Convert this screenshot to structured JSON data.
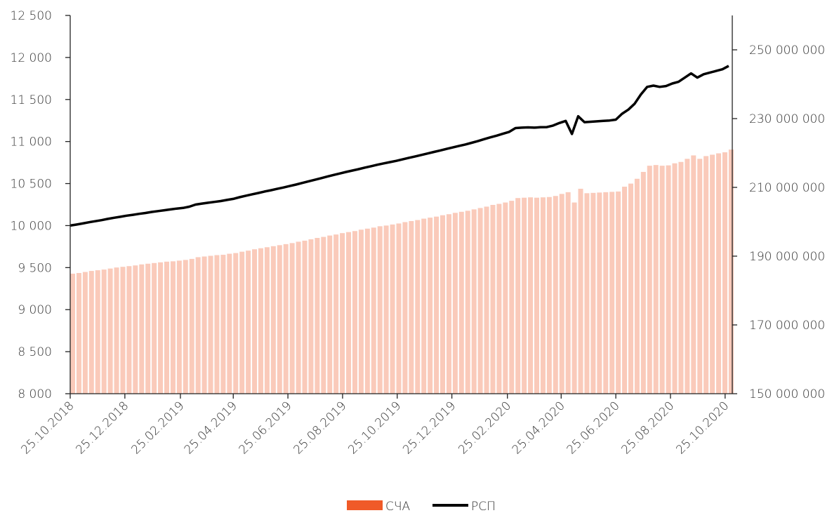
{
  "chart_data": {
    "type": "combo",
    "x": [
      "25.10.2018",
      "01.11.2018",
      "08.11.2018",
      "15.11.2018",
      "22.11.2018",
      "29.11.2018",
      "06.12.2018",
      "13.12.2018",
      "20.12.2018",
      "27.12.2018",
      "03.01.2019",
      "10.01.2019",
      "17.01.2019",
      "24.01.2019",
      "31.01.2019",
      "07.02.2019",
      "14.02.2019",
      "21.02.2019",
      "28.02.2019",
      "07.03.2019",
      "14.03.2019",
      "21.03.2019",
      "28.03.2019",
      "04.04.2019",
      "11.04.2019",
      "18.04.2019",
      "25.04.2019",
      "02.05.2019",
      "09.05.2019",
      "16.05.2019",
      "23.05.2019",
      "30.05.2019",
      "06.06.2019",
      "13.06.2019",
      "20.06.2019",
      "27.06.2019",
      "04.07.2019",
      "11.07.2019",
      "18.07.2019",
      "25.07.2019",
      "01.08.2019",
      "08.08.2019",
      "15.08.2019",
      "22.08.2019",
      "29.08.2019",
      "05.09.2019",
      "12.09.2019",
      "19.09.2019",
      "26.09.2019",
      "03.10.2019",
      "10.10.2019",
      "17.10.2019",
      "24.10.2019",
      "31.10.2019",
      "07.11.2019",
      "14.11.2019",
      "21.11.2019",
      "28.11.2019",
      "05.12.2019",
      "12.12.2019",
      "19.12.2019",
      "26.12.2019",
      "02.01.2020",
      "09.01.2020",
      "16.01.2020",
      "23.01.2020",
      "30.01.2020",
      "06.02.2020",
      "13.02.2020",
      "20.02.2020",
      "27.02.2020",
      "05.03.2020",
      "12.03.2020",
      "19.03.2020",
      "26.03.2020",
      "02.04.2020",
      "09.04.2020",
      "16.04.2020",
      "23.04.2020",
      "30.04.2020",
      "07.05.2020",
      "14.05.2020",
      "21.05.2020",
      "28.05.2020",
      "04.06.2020",
      "11.06.2020",
      "18.06.2020",
      "25.06.2020",
      "02.07.2020",
      "09.07.2020",
      "16.07.2020",
      "23.07.2020",
      "30.07.2020",
      "06.08.2020",
      "13.08.2020",
      "20.08.2020",
      "27.08.2020",
      "03.09.2020",
      "10.09.2020",
      "17.09.2020",
      "24.09.2020",
      "01.10.2020",
      "08.10.2020",
      "15.10.2020",
      "22.10.2020",
      "29.10.2020"
    ],
    "series": [
      {
        "name": "СЧА",
        "type": "bar",
        "axis": "y2",
        "color": "#f05a28",
        "values": [
          184900000,
          185100000,
          185400000,
          185700000,
          185900000,
          186100000,
          186400000,
          186700000,
          186900000,
          187100000,
          187300000,
          187600000,
          187800000,
          188000000,
          188200000,
          188400000,
          188500000,
          188700000,
          188900000,
          189200000,
          189700000,
          189900000,
          190100000,
          190300000,
          190400000,
          190700000,
          190900000,
          191300000,
          191600000,
          192000000,
          192300000,
          192600000,
          192900000,
          193200000,
          193500000,
          193800000,
          194200000,
          194500000,
          194900000,
          195300000,
          195600000,
          196000000,
          196300000,
          196700000,
          197000000,
          197300000,
          197700000,
          198000000,
          198300000,
          198700000,
          198900000,
          199200000,
          199500000,
          199900000,
          200200000,
          200500000,
          200900000,
          201200000,
          201500000,
          201900000,
          202200000,
          202600000,
          202900000,
          203200000,
          203600000,
          204000000,
          204400000,
          204900000,
          205200000,
          205600000,
          206100000,
          206900000,
          207000000,
          207100000,
          207000000,
          207100000,
          207200000,
          207500000,
          208100000,
          208600000,
          205600000,
          209600000,
          208300000,
          208400000,
          208500000,
          208600000,
          208700000,
          208800000,
          210200000,
          211100000,
          212500000,
          214500000,
          216300000,
          216500000,
          216300000,
          216400000,
          217000000,
          217400000,
          218300000,
          219300000,
          218300000,
          219100000,
          219500000,
          219900000,
          220200000,
          221000000
        ]
      },
      {
        "name": "РСП",
        "type": "line",
        "axis": "y",
        "color": "#000000",
        "values": [
          10000,
          10012,
          10025,
          10040,
          10052,
          10065,
          10080,
          10093,
          10105,
          10118,
          10128,
          10140,
          10150,
          10162,
          10172,
          10182,
          10192,
          10202,
          10210,
          10225,
          10250,
          10262,
          10272,
          10282,
          10292,
          10305,
          10318,
          10338,
          10355,
          10372,
          10388,
          10405,
          10420,
          10437,
          10453,
          10470,
          10488,
          10507,
          10526,
          10545,
          10564,
          10583,
          10602,
          10620,
          10638,
          10655,
          10672,
          10690,
          10707,
          10724,
          10740,
          10755,
          10770,
          10788,
          10806,
          10823,
          10840,
          10858,
          10876,
          10894,
          10912,
          10930,
          10948,
          10965,
          10985,
          11005,
          11028,
          11050,
          11070,
          11092,
          11115,
          11160,
          11165,
          11168,
          11165,
          11170,
          11172,
          11190,
          11220,
          11245,
          11090,
          11300,
          11230,
          11235,
          11240,
          11245,
          11250,
          11260,
          11330,
          11380,
          11450,
          11560,
          11650,
          11665,
          11650,
          11660,
          11690,
          11710,
          11760,
          11810,
          11760,
          11800,
          11820,
          11840,
          11860,
          11900
        ]
      }
    ],
    "xlim": [
      "25.10.2018",
      "02.11.2020"
    ],
    "xticks": [
      "25.10.2018",
      "25.12.2018",
      "25.02.2019",
      "25.04.2019",
      "25.06.2019",
      "25.08.2019",
      "25.10.2019",
      "25.12.2019",
      "25.02.2020",
      "25.04.2020",
      "25.06.2020",
      "25.08.2020",
      "25.10.2020"
    ],
    "ylim": [
      8000,
      12500
    ],
    "yticks": [
      {
        "value": 8000,
        "label": "8 000"
      },
      {
        "value": 8500,
        "label": "8 500"
      },
      {
        "value": 9000,
        "label": "9 000"
      },
      {
        "value": 9500,
        "label": "9 500"
      },
      {
        "value": 10000,
        "label": "10 000"
      },
      {
        "value": 10500,
        "label": "10 500"
      },
      {
        "value": 11000,
        "label": "11 000"
      },
      {
        "value": 11500,
        "label": "11 500"
      },
      {
        "value": 12000,
        "label": "12 000"
      },
      {
        "value": 12500,
        "label": "12 500"
      }
    ],
    "y2lim": [
      150000000,
      260000000
    ],
    "y2ticks": [
      {
        "value": 150000000,
        "label": "150 000 000"
      },
      {
        "value": 170000000,
        "label": "170 000 000"
      },
      {
        "value": 190000000,
        "label": "190 000 000"
      },
      {
        "value": 210000000,
        "label": "210 000 000"
      },
      {
        "value": 230000000,
        "label": "230 000 000"
      },
      {
        "value": 250000000,
        "label": "250 000 000"
      }
    ],
    "grid": false,
    "legend": "bottom"
  }
}
